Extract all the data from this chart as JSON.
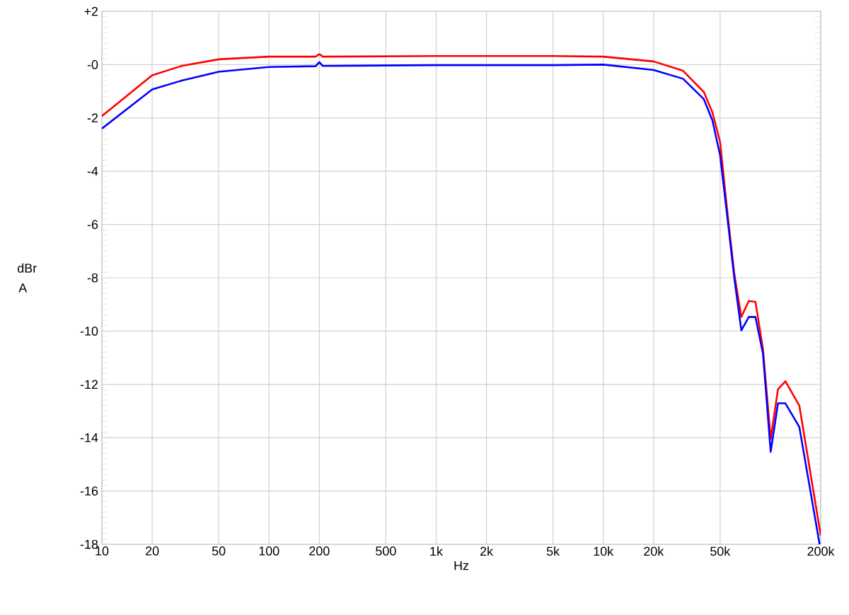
{
  "chart_data": {
    "type": "line",
    "xlabel": "Hz",
    "ylabel": "dBr A",
    "log": "x",
    "grid": true,
    "xlim": [
      10,
      200000
    ],
    "ylim": [
      -18,
      2
    ],
    "xticks": [
      10,
      20,
      50,
      100,
      200,
      500,
      {
        "value": 1000,
        "label": "1k"
      },
      {
        "value": 2000,
        "label": "2k"
      },
      {
        "value": 5000,
        "label": "5k"
      },
      {
        "value": 10000,
        "label": "10k"
      },
      {
        "value": 20000,
        "label": "20k"
      },
      {
        "value": 50000,
        "label": "50k"
      },
      {
        "value": 200000,
        "label": "200k"
      }
    ],
    "yticks": [
      {
        "value": 2,
        "label": "+2"
      },
      {
        "value": 0,
        "label": "-0"
      },
      -2,
      -4,
      -6,
      -8,
      -10,
      -12,
      -14,
      -16,
      -18
    ],
    "series": [
      {
        "color": "#ff0000",
        "x": [
          10,
          20,
          30,
          50,
          100,
          190,
          200,
          210,
          1000,
          5000,
          10000,
          20000,
          30000,
          40000,
          45000,
          50000,
          55200,
          60800,
          67000,
          74300,
          81400,
          90300,
          100400,
          111000,
          123000,
          149000,
          200000
        ],
        "values": [
          -1.93,
          -0.4,
          -0.05,
          0.2,
          0.3,
          0.3,
          0.39,
          0.3,
          0.32,
          0.32,
          0.3,
          0.12,
          -0.23,
          -1.03,
          -1.8,
          -2.9,
          -5.5,
          -7.84,
          -9.47,
          -8.87,
          -8.9,
          -10.68,
          -14.04,
          -12.18,
          -11.88,
          -12.8,
          -17.67
        ]
      },
      {
        "color": "#0000ff",
        "x": [
          10,
          20,
          30,
          50,
          100,
          190,
          200,
          210,
          1000,
          5000,
          10000,
          20000,
          30000,
          40000,
          45000,
          50000,
          55200,
          60800,
          67000,
          74300,
          81400,
          90300,
          100400,
          111000,
          123000,
          149000,
          197000
        ],
        "values": [
          -2.4,
          -0.93,
          -0.6,
          -0.27,
          -0.09,
          -0.06,
          0.09,
          -0.05,
          -0.02,
          -0.02,
          0.0,
          -0.2,
          -0.53,
          -1.3,
          -2.1,
          -3.4,
          -5.7,
          -8.0,
          -9.97,
          -9.47,
          -9.47,
          -10.85,
          -14.53,
          -12.71,
          -12.71,
          -13.6,
          -18.0
        ]
      }
    ]
  }
}
